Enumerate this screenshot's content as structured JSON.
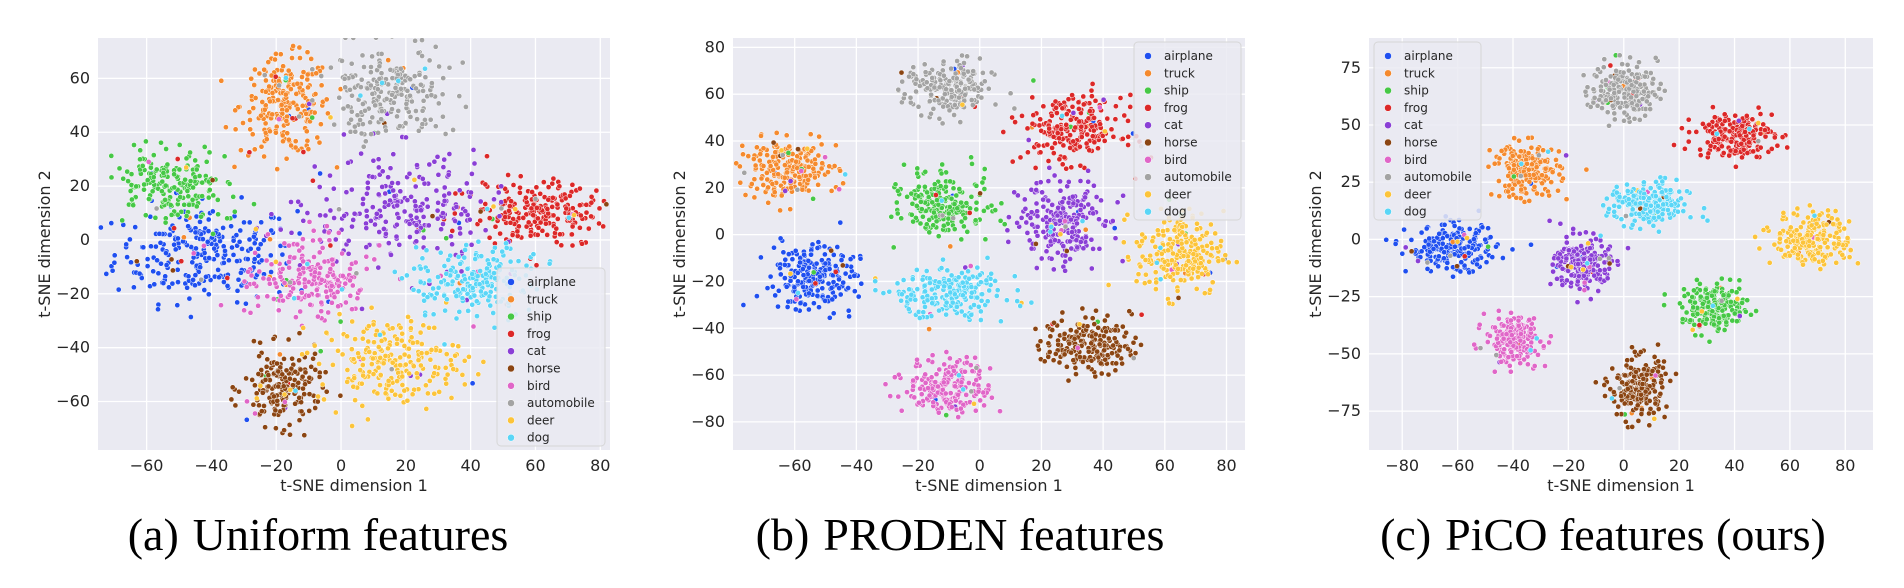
{
  "figure": {
    "captions": [
      {
        "label": "(a)",
        "text": "Uniform features"
      },
      {
        "label": "(b)",
        "text": "PRODEN features"
      },
      {
        "label": "(c)",
        "text": "PiCO features (ours)"
      }
    ]
  },
  "chart_data": [
    {
      "type": "scatter",
      "title": "",
      "xlabel": "t-SNE dimension 1",
      "ylabel": "t-SNE dimension 2",
      "xlim": [
        -75,
        83
      ],
      "ylim": [
        -78,
        75
      ],
      "xticks": [
        -60,
        -40,
        -20,
        0,
        20,
        40,
        60,
        80
      ],
      "yticks": [
        -60,
        -40,
        -20,
        0,
        20,
        40,
        60
      ],
      "grid": true,
      "legend_position": "lower-right",
      "series": [
        {
          "name": "airplane",
          "color": "#1f4ff0",
          "cx": -42,
          "cy": -5,
          "sx": 14,
          "sy": 9,
          "n": 260
        },
        {
          "name": "truck",
          "color": "#f58a2e",
          "cx": -17,
          "cy": 50,
          "sx": 7,
          "sy": 9,
          "n": 220
        },
        {
          "name": "ship",
          "color": "#46c846",
          "cx": -52,
          "cy": 20,
          "sx": 9,
          "sy": 6,
          "n": 200
        },
        {
          "name": "frog",
          "color": "#dc2828",
          "cx": 62,
          "cy": 10,
          "sx": 11,
          "sy": 6,
          "n": 220
        },
        {
          "name": "cat",
          "color": "#8a3fd6",
          "cx": 18,
          "cy": 12,
          "sx": 14,
          "sy": 10,
          "n": 240
        },
        {
          "name": "horse",
          "color": "#8b4513",
          "cx": -18,
          "cy": -55,
          "sx": 6,
          "sy": 7,
          "n": 180
        },
        {
          "name": "bird",
          "color": "#e066c8",
          "cx": -10,
          "cy": -15,
          "sx": 9,
          "sy": 8,
          "n": 200
        },
        {
          "name": "automobile",
          "color": "#a3a3a3",
          "cx": 15,
          "cy": 55,
          "sx": 9,
          "sy": 8,
          "n": 220
        },
        {
          "name": "deer",
          "color": "#fcc43a",
          "cx": 15,
          "cy": -45,
          "sx": 11,
          "sy": 8,
          "n": 220
        },
        {
          "name": "dog",
          "color": "#5ad6f7",
          "cx": 42,
          "cy": -15,
          "sx": 9,
          "sy": 7,
          "n": 200
        }
      ]
    },
    {
      "type": "scatter",
      "title": "",
      "xlabel": "t-SNE dimension 1",
      "ylabel": "t-SNE dimension 2",
      "xlim": [
        -80,
        86
      ],
      "ylim": [
        -92,
        84
      ],
      "xticks": [
        -60,
        -40,
        -20,
        0,
        20,
        40,
        60,
        80
      ],
      "yticks": [
        -80,
        -60,
        -40,
        -20,
        0,
        20,
        40,
        60,
        80
      ],
      "grid": true,
      "legend_position": "top-right",
      "series": [
        {
          "name": "airplane",
          "color": "#1f4ff0",
          "cx": -55,
          "cy": -18,
          "sx": 7,
          "sy": 7,
          "n": 220
        },
        {
          "name": "truck",
          "color": "#f58a2e",
          "cx": -62,
          "cy": 28,
          "sx": 8,
          "sy": 6,
          "n": 220
        },
        {
          "name": "ship",
          "color": "#46c846",
          "cx": -12,
          "cy": 14,
          "sx": 7,
          "sy": 7,
          "n": 220
        },
        {
          "name": "frog",
          "color": "#dc2828",
          "cx": 30,
          "cy": 45,
          "sx": 8,
          "sy": 7,
          "n": 220
        },
        {
          "name": "cat",
          "color": "#8a3fd6",
          "cx": 27,
          "cy": 5,
          "sx": 7,
          "sy": 9,
          "n": 220
        },
        {
          "name": "horse",
          "color": "#8b4513",
          "cx": 35,
          "cy": -47,
          "sx": 7,
          "sy": 6,
          "n": 200
        },
        {
          "name": "bird",
          "color": "#e066c8",
          "cx": -10,
          "cy": -65,
          "sx": 7,
          "sy": 6,
          "n": 200
        },
        {
          "name": "automobile",
          "color": "#a3a3a3",
          "cx": -10,
          "cy": 62,
          "sx": 7,
          "sy": 6,
          "n": 200
        },
        {
          "name": "deer",
          "color": "#fcc43a",
          "cx": 65,
          "cy": -8,
          "sx": 7,
          "sy": 9,
          "n": 220
        },
        {
          "name": "dog",
          "color": "#5ad6f7",
          "cx": -10,
          "cy": -25,
          "sx": 9,
          "sy": 6,
          "n": 220
        }
      ]
    },
    {
      "type": "scatter",
      "title": "",
      "xlabel": "t-SNE dimension 1",
      "ylabel": "t-SNE dimension 2",
      "xlim": [
        -92,
        90
      ],
      "ylim": [
        -92,
        88
      ],
      "xticks": [
        -80,
        -60,
        -40,
        -20,
        0,
        20,
        40,
        60,
        80
      ],
      "yticks": [
        -75,
        -50,
        -25,
        0,
        25,
        50,
        75
      ],
      "grid": true,
      "legend_position": "top-left",
      "series": [
        {
          "name": "airplane",
          "color": "#1f4ff0",
          "cx": -62,
          "cy": -4,
          "sx": 8,
          "sy": 5,
          "n": 200
        },
        {
          "name": "truck",
          "color": "#f58a2e",
          "cx": -35,
          "cy": 30,
          "sx": 6,
          "sy": 6,
          "n": 200
        },
        {
          "name": "ship",
          "color": "#46c846",
          "cx": 33,
          "cy": -30,
          "sx": 6,
          "sy": 5,
          "n": 200
        },
        {
          "name": "frog",
          "color": "#dc2828",
          "cx": 40,
          "cy": 46,
          "sx": 7,
          "sy": 5,
          "n": 200
        },
        {
          "name": "cat",
          "color": "#8a3fd6",
          "cx": -15,
          "cy": -11,
          "sx": 5,
          "sy": 6,
          "n": 200
        },
        {
          "name": "horse",
          "color": "#8b4513",
          "cx": 5,
          "cy": -65,
          "sx": 5,
          "sy": 7,
          "n": 200
        },
        {
          "name": "bird",
          "color": "#e066c8",
          "cx": -40,
          "cy": -44,
          "sx": 5,
          "sy": 5,
          "n": 200
        },
        {
          "name": "automobile",
          "color": "#a3a3a3",
          "cx": 0,
          "cy": 65,
          "sx": 6,
          "sy": 6,
          "n": 200
        },
        {
          "name": "deer",
          "color": "#fcc43a",
          "cx": 68,
          "cy": 0,
          "sx": 7,
          "sy": 6,
          "n": 200
        },
        {
          "name": "dog",
          "color": "#5ad6f7",
          "cx": 9,
          "cy": 15,
          "sx": 7,
          "sy": 5,
          "n": 200
        }
      ]
    }
  ]
}
